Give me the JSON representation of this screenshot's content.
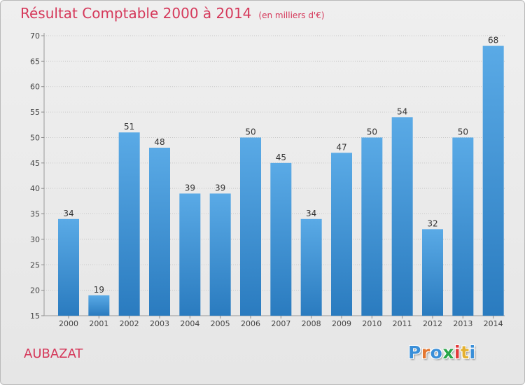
{
  "title": "Résultat Comptable 2000 à 2014",
  "subtitle": "(en milliers d'€)",
  "commune": "AUBAZAT",
  "logo": "Proxiti",
  "colors": {
    "title": "#d5385a",
    "bar_top": "#5aaae6",
    "bar_bottom": "#2a7bbf",
    "logo": [
      "#3a8fd8",
      "#e4762f",
      "#3a8fd8",
      "#2aa64a",
      "#e23a3a",
      "#e4b02f",
      "#3a8fd8"
    ]
  },
  "chart_data": {
    "type": "bar",
    "categories": [
      "2000",
      "2001",
      "2002",
      "2003",
      "2004",
      "2005",
      "2006",
      "2007",
      "2008",
      "2009",
      "2010",
      "2011",
      "2012",
      "2013",
      "2014"
    ],
    "values": [
      34,
      19,
      51,
      48,
      39,
      39,
      50,
      45,
      34,
      47,
      50,
      54,
      32,
      50,
      68
    ],
    "ylim": [
      15,
      70
    ],
    "yticks": [
      15,
      20,
      25,
      30,
      35,
      40,
      45,
      50,
      55,
      60,
      65,
      70
    ],
    "grid": true,
    "title": "Résultat Comptable 2000 à 2014",
    "xlabel": "",
    "ylabel": ""
  }
}
